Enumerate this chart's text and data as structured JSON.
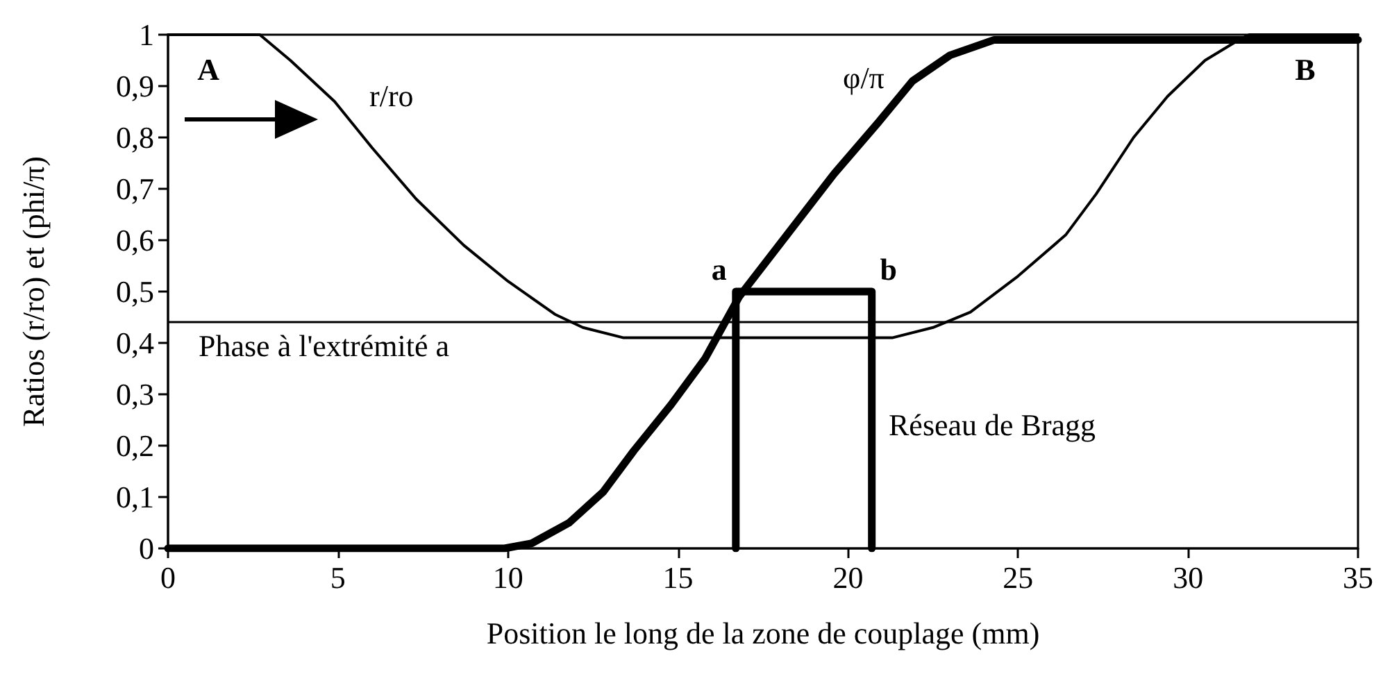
{
  "chart_data": {
    "type": "line",
    "xlabel": "Position le long de la zone de couplage (mm)",
    "ylabel": "Ratios (r/ro) et (phi/π)",
    "xlim": [
      0,
      35
    ],
    "xticks": [
      0,
      5,
      10,
      15,
      20,
      25,
      30,
      35
    ],
    "ylim": [
      0,
      1
    ],
    "yticks": [
      0,
      {
        "value": 0.1,
        "label": "0,1"
      },
      {
        "value": 0.2,
        "label": "0,2"
      },
      {
        "value": 0.3,
        "label": "0,3"
      },
      {
        "value": 0.4,
        "label": "0,4"
      },
      {
        "value": 0.5,
        "label": "0,5"
      },
      {
        "value": 0.6,
        "label": "0,6"
      },
      {
        "value": 0.7,
        "label": "0,7"
      },
      {
        "value": 0.8,
        "label": "0,8"
      },
      {
        "value": 0.9,
        "label": "0,9"
      },
      1
    ],
    "series": [
      {
        "name": "r/ro",
        "color": "#000000",
        "x": [
          0,
          1,
          2,
          2.7,
          3.6,
          4.9,
          6,
          7.3,
          8.7,
          10,
          11.4,
          12.2,
          13.4,
          14.5,
          16,
          18,
          20,
          21.3,
          22.5,
          23.6,
          25,
          26.4,
          27.3,
          28.4,
          29.4,
          30.5,
          31.5,
          31.8,
          33,
          35
        ],
        "values": [
          1,
          1,
          1,
          1,
          0.95,
          0.87,
          0.78,
          0.68,
          0.59,
          0.52,
          0.455,
          0.43,
          0.41,
          0.41,
          0.41,
          0.41,
          0.41,
          0.41,
          0.43,
          0.46,
          0.53,
          0.61,
          0.69,
          0.8,
          0.88,
          0.95,
          0.99,
          1,
          1,
          1
        ]
      },
      {
        "name": "φ/π",
        "color": "#000000",
        "x": [
          0,
          5,
          9.9,
          10.7,
          11.8,
          12.8,
          13.7,
          14.8,
          15.8,
          16.8,
          18.2,
          19.6,
          20.9,
          21.9,
          23,
          24.3,
          25.4,
          30,
          35
        ],
        "values": [
          0,
          0,
          0,
          0.01,
          0.05,
          0.11,
          0.19,
          0.28,
          0.37,
          0.49,
          0.61,
          0.73,
          0.83,
          0.91,
          0.96,
          0.99,
          0.99,
          0.99,
          0.99
        ]
      },
      {
        "name": "Réseau de Bragg",
        "color": "#000000",
        "x": [
          16.7,
          16.7,
          20.7,
          20.7
        ],
        "values": [
          0,
          0.5,
          0.5,
          0
        ]
      }
    ],
    "ref_lines": [
      {
        "axis": "y",
        "value": 0.44,
        "label": "Phase à l'extrémité a",
        "color": "#000000"
      }
    ],
    "annotations": [
      {
        "text": "A",
        "x": 0,
        "y": 1
      },
      {
        "text": "B",
        "x": 35,
        "y": 1
      },
      {
        "text": "a",
        "x": 16.7,
        "y": 0.5
      },
      {
        "text": "b",
        "x": 20.7,
        "y": 0.5
      }
    ]
  }
}
